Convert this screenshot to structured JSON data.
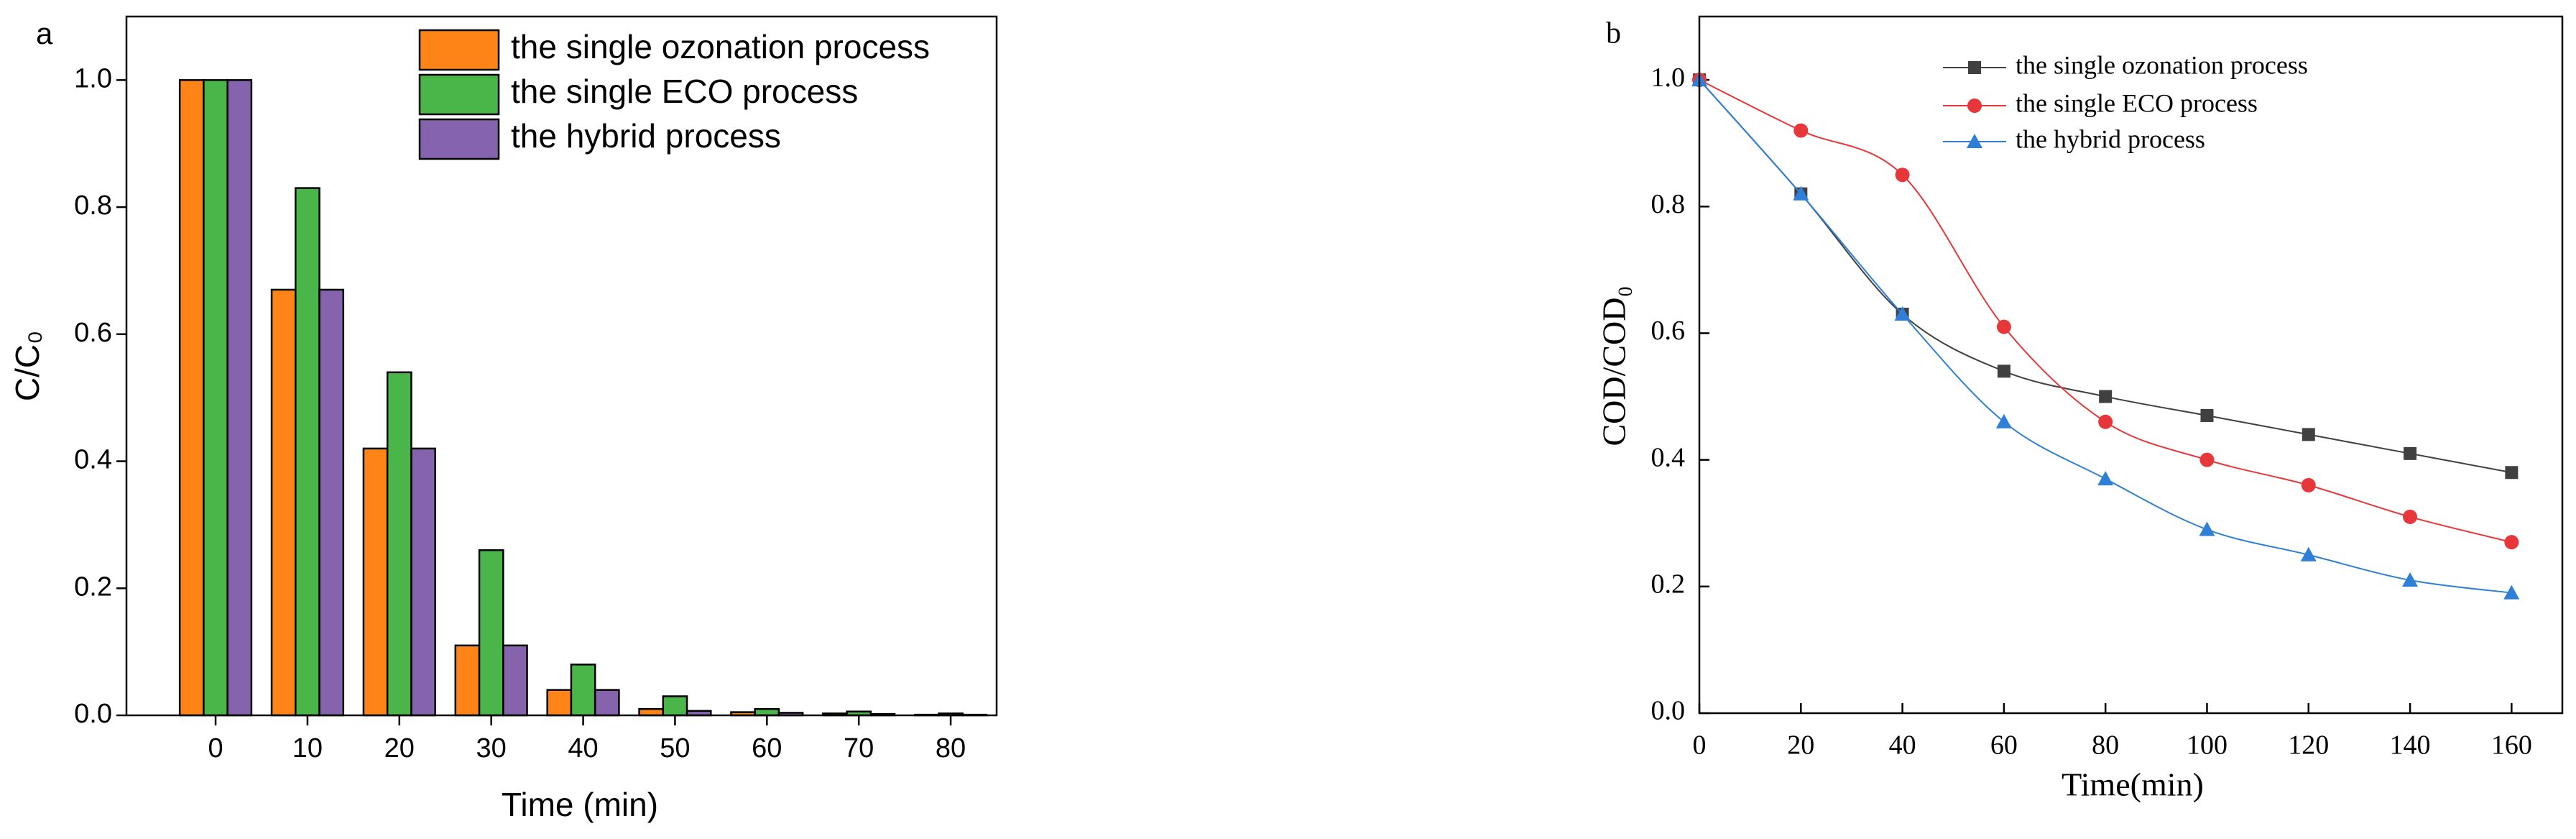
{
  "chart_data": [
    {
      "type": "bar",
      "panel": "a",
      "xlabel": "Time (min)",
      "ylabel": "C/C₀",
      "x": [
        0,
        10,
        20,
        30,
        40,
        50,
        60,
        70,
        80
      ],
      "series": [
        {
          "name": "the single ozonation process",
          "color": "#ff8418",
          "values": [
            1.0,
            0.67,
            0.42,
            0.11,
            0.04,
            0.01,
            0.005,
            0.003,
            0.001
          ]
        },
        {
          "name": "the single ECO process",
          "color": "#4ab549",
          "values": [
            1.0,
            0.83,
            0.54,
            0.26,
            0.08,
            0.03,
            0.01,
            0.006,
            0.003
          ]
        },
        {
          "name": "the hybrid process",
          "color": "#8563ad",
          "values": [
            1.0,
            0.67,
            0.42,
            0.11,
            0.04,
            0.007,
            0.004,
            0.002,
            0.001
          ]
        }
      ],
      "xlim": [
        -9.7,
        85
      ],
      "xticks": [
        0,
        10,
        20,
        30,
        40,
        50,
        60,
        70,
        80
      ],
      "ylim": [
        0,
        1.1
      ],
      "yticks": [
        {
          "value": 0,
          "label": "0.0"
        },
        0.2,
        0.4,
        0.6,
        0.8,
        {
          "value": 1,
          "label": "1.0"
        }
      ],
      "legend": "upper right"
    },
    {
      "type": "line",
      "panel": "b",
      "xlabel": "Time(min)",
      "ylabel": "COD/COD₀",
      "x": [
        0,
        20,
        40,
        60,
        80,
        100,
        120,
        140,
        160
      ],
      "series": [
        {
          "name": "the single ozonation process",
          "color": "#404040",
          "marker": "square",
          "values": [
            1.0,
            0.82,
            0.63,
            0.54,
            0.5,
            0.47,
            0.44,
            0.41,
            0.38
          ]
        },
        {
          "name": "the single ECO process",
          "color": "#e8373a",
          "marker": "circle",
          "values": [
            1.0,
            0.92,
            0.85,
            0.61,
            0.46,
            0.4,
            0.36,
            0.31,
            0.27
          ]
        },
        {
          "name": "the hybrid process",
          "color": "#2f7fd8",
          "marker": "triangle",
          "values": [
            1.0,
            0.82,
            0.63,
            0.46,
            0.37,
            0.29,
            0.25,
            0.21,
            0.19
          ]
        }
      ],
      "xlim": [
        0,
        170
      ],
      "xticks": [
        0,
        20,
        40,
        60,
        80,
        100,
        120,
        140,
        160
      ],
      "ylim": [
        0,
        1.1
      ],
      "yticks": [
        {
          "value": 0,
          "label": "0.0"
        },
        0.2,
        0.4,
        0.6,
        0.8,
        {
          "value": 1,
          "label": "1.0"
        }
      ],
      "legend": "upper center"
    }
  ]
}
